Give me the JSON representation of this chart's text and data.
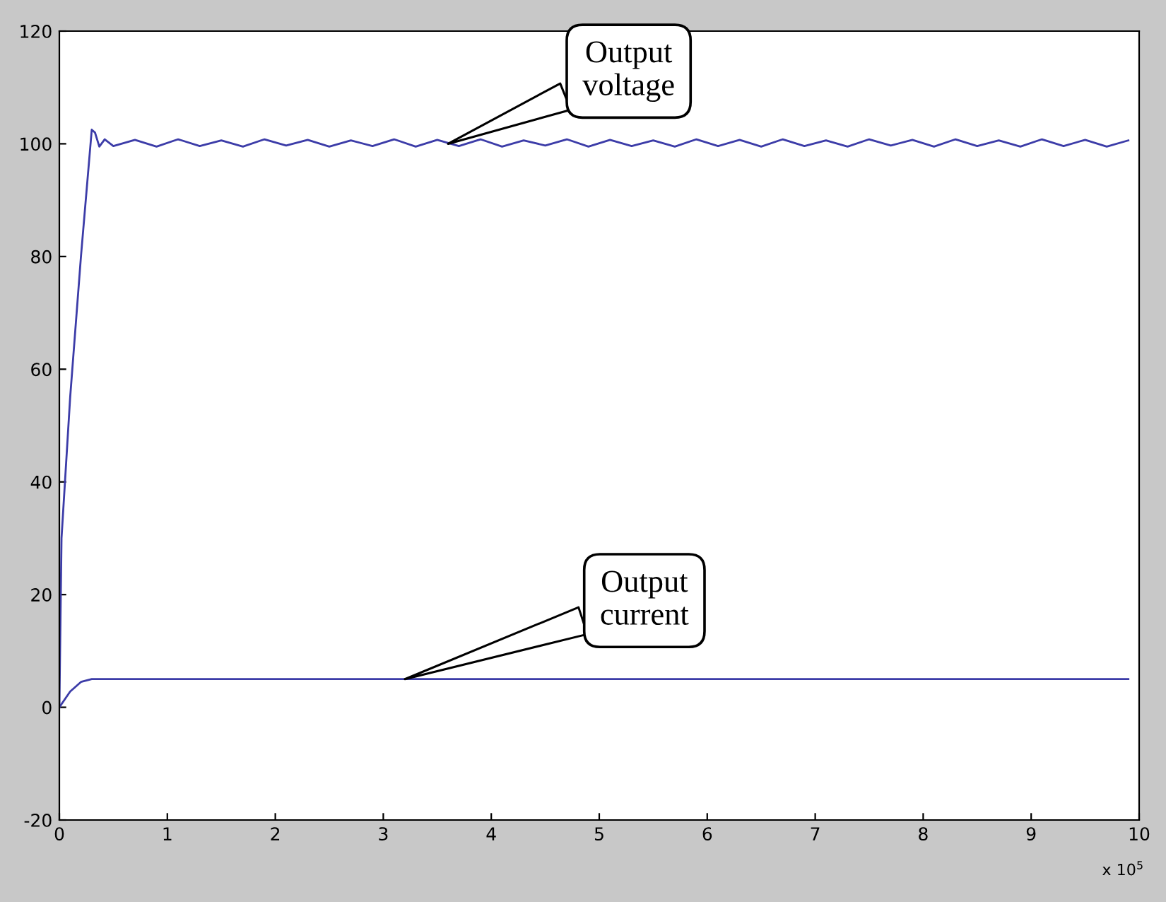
{
  "chart_data": {
    "type": "line",
    "xlim": [
      0,
      10
    ],
    "ylim": [
      -20,
      120
    ],
    "xticks": [
      0,
      1,
      2,
      3,
      4,
      5,
      6,
      7,
      8,
      9,
      10
    ],
    "yticks": [
      -20,
      0,
      20,
      40,
      60,
      80,
      100,
      120
    ],
    "grid": false,
    "legend": false,
    "series": [
      {
        "color": "#3c3ca8",
        "x": [
          0,
          0.02,
          0.1,
          0.2,
          0.3,
          0.33,
          0.37,
          0.42,
          0.5,
          0.7,
          0.9,
          1.1,
          1.3,
          1.5,
          1.7,
          1.9,
          2.1,
          2.3,
          2.5,
          2.7,
          2.9,
          3.1,
          3.3,
          3.5,
          3.7,
          3.9,
          4.1,
          4.3,
          4.5,
          4.7,
          4.9,
          5.1,
          5.3,
          5.5,
          5.7,
          5.9,
          6.1,
          6.3,
          6.5,
          6.7,
          6.9,
          7.1,
          7.3,
          7.5,
          7.7,
          7.9,
          8.1,
          8.3,
          8.5,
          8.7,
          8.9,
          9.1,
          9.3,
          9.5,
          9.7,
          9.9
        ],
        "values": [
          0,
          30,
          55,
          80,
          102.5,
          102,
          99.5,
          100.8,
          99.6,
          100.7,
          99.5,
          100.8,
          99.6,
          100.6,
          99.5,
          100.8,
          99.7,
          100.7,
          99.5,
          100.6,
          99.6,
          100.8,
          99.5,
          100.7,
          99.6,
          100.8,
          99.5,
          100.6,
          99.7,
          100.8,
          99.5,
          100.7,
          99.6,
          100.6,
          99.5,
          100.8,
          99.6,
          100.7,
          99.5,
          100.8,
          99.6,
          100.6,
          99.5,
          100.8,
          99.7,
          100.7,
          99.5,
          100.8,
          99.6,
          100.6,
          99.5,
          100.8,
          99.6,
          100.7,
          99.5,
          100.6
        ]
      },
      {
        "color": "#3c3ca8",
        "x": [
          0,
          0.1,
          0.2,
          0.3,
          9.9
        ],
        "values": [
          0,
          2.8,
          4.5,
          5,
          5
        ]
      }
    ],
    "annotations": [
      {
        "text": "Output\nvoltage",
        "x": 3.6,
        "y": 100
      },
      {
        "text": "Output\ncurrent",
        "x": 3.2,
        "y": 5
      },
      "x 10$^{5}$"
    ]
  }
}
